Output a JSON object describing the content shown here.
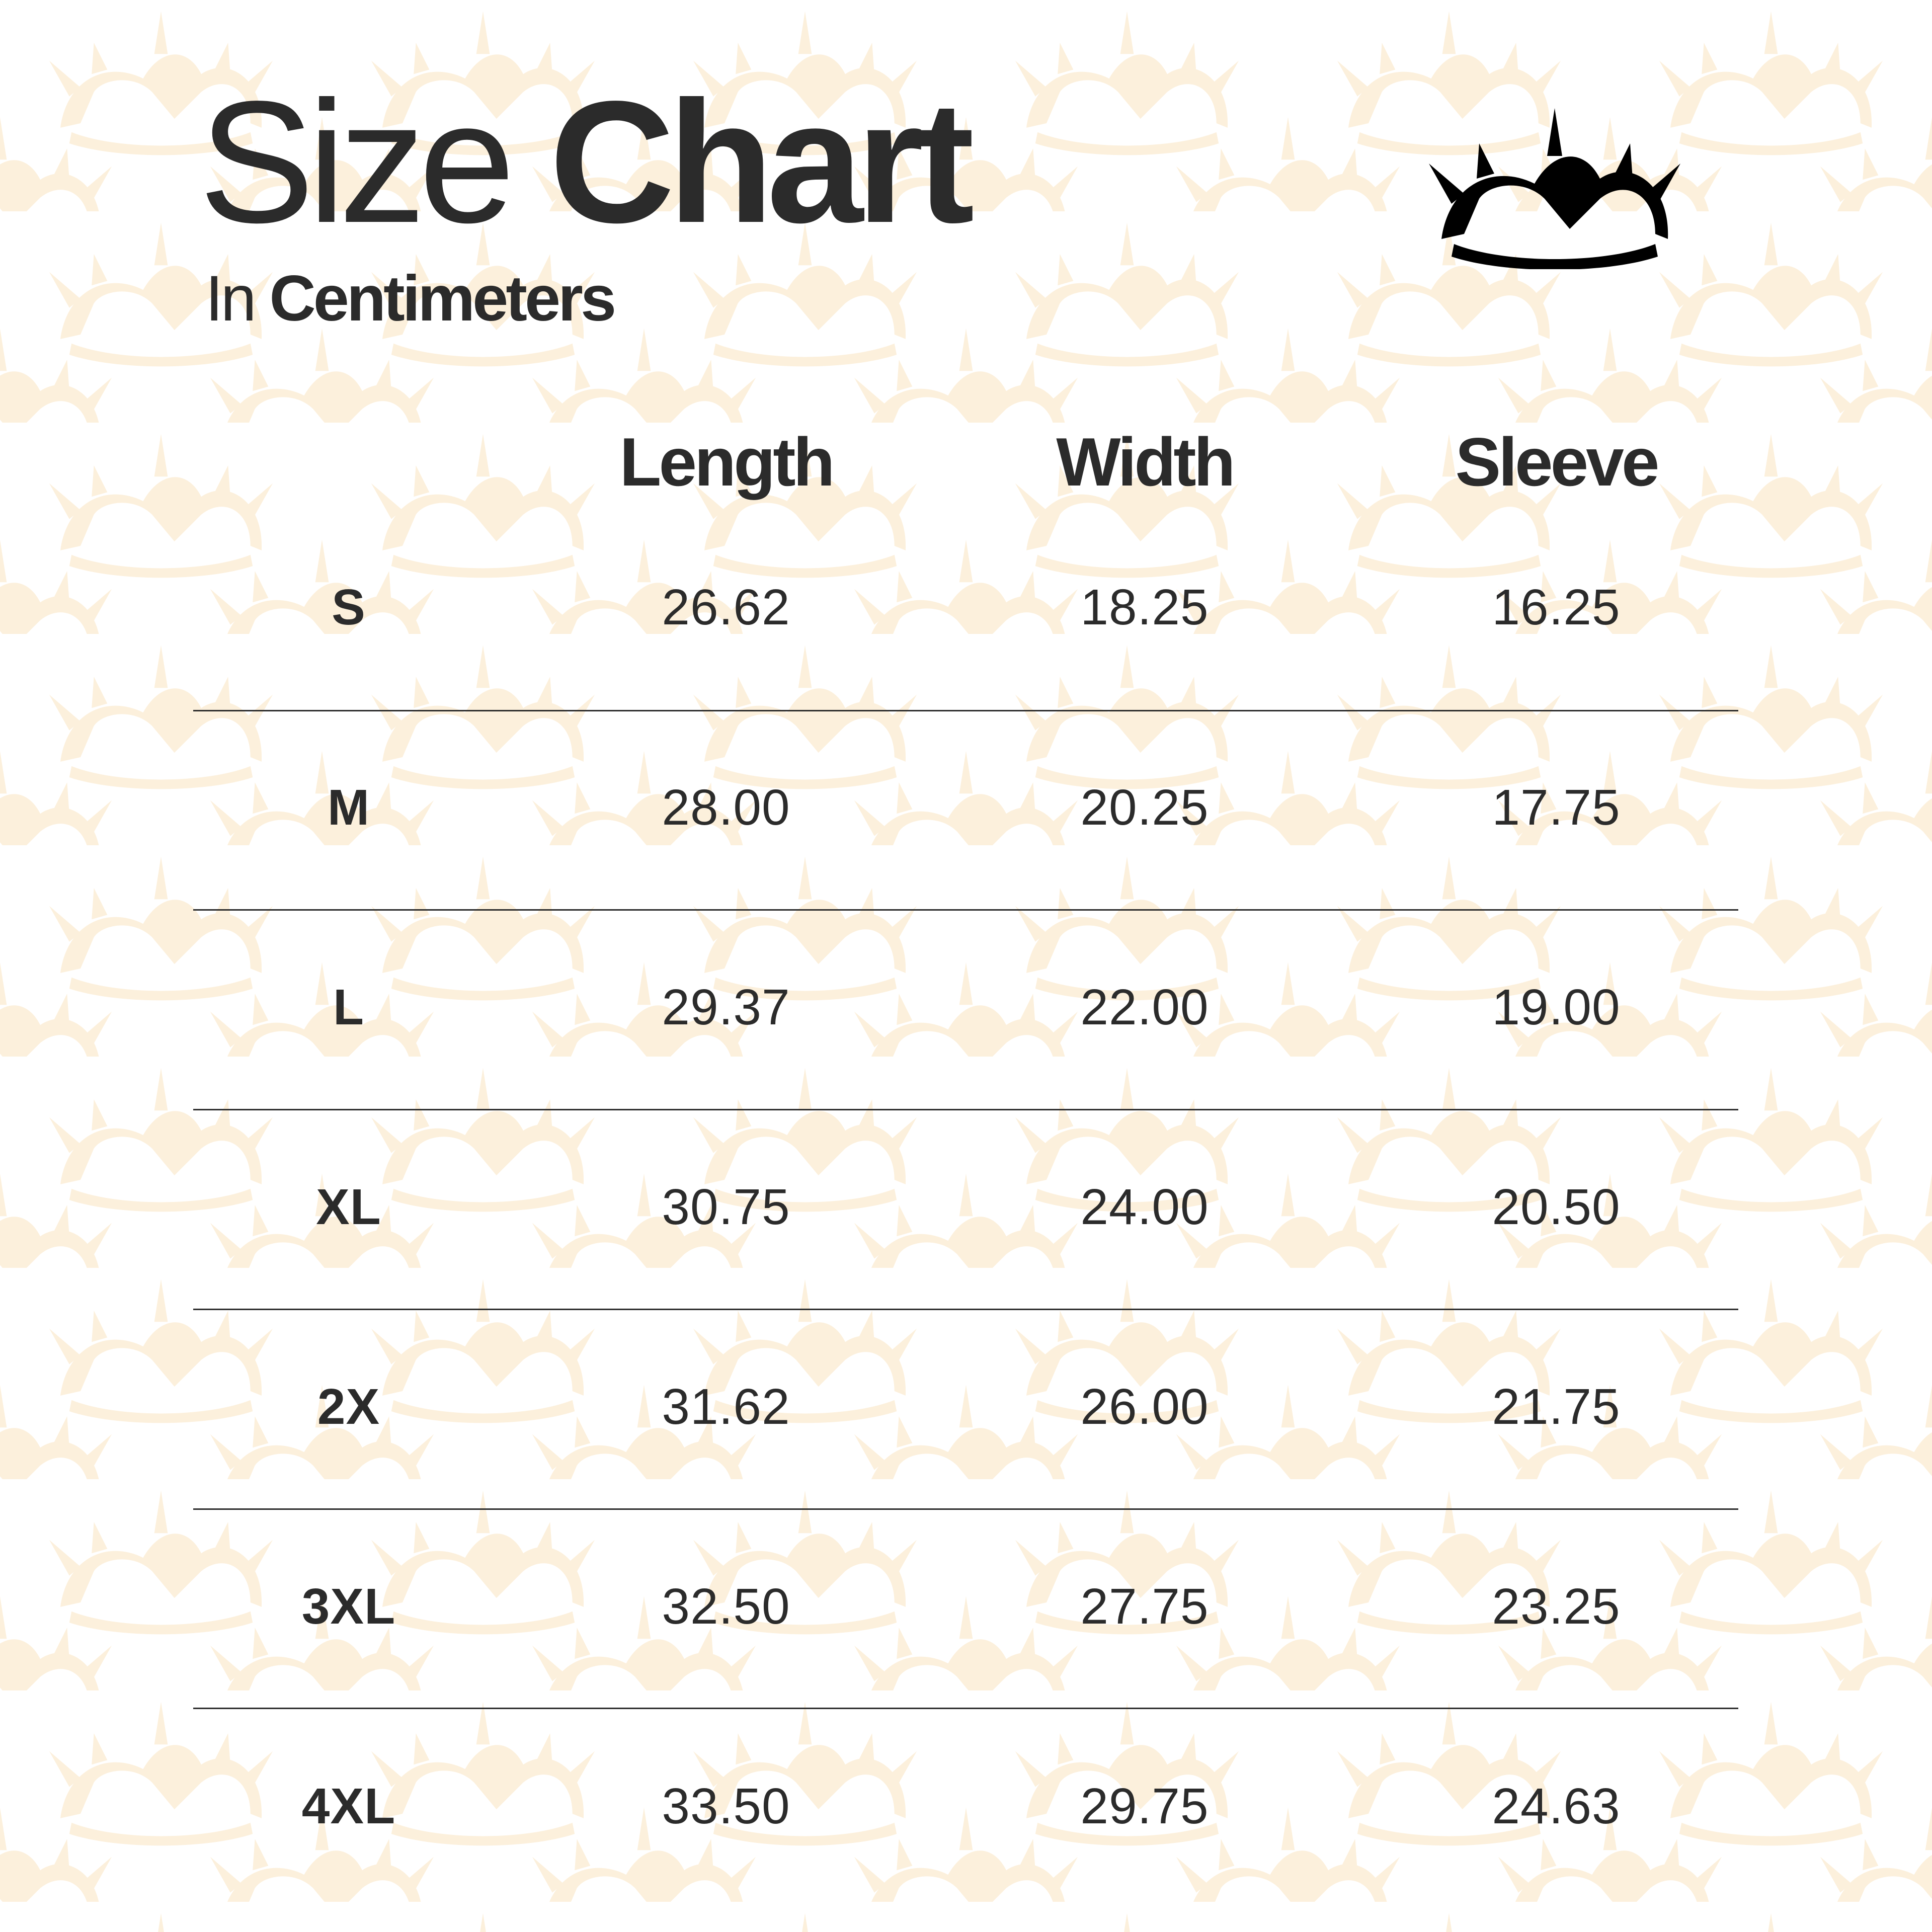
{
  "header": {
    "title_light": "Size",
    "title_bold": "Chart",
    "subtitle_light": "In",
    "subtitle_bold": "Centimeters",
    "logo_icon": "crown-of-thorns-icon"
  },
  "colors": {
    "background": "#ffffff",
    "pattern": "#fcf0dc",
    "text": "#2b2b2b"
  },
  "table": {
    "columns": [
      "",
      "Length",
      "Width",
      "Sleeve"
    ],
    "rows": [
      {
        "size": "S",
        "length": "26.62",
        "width": "18.25",
        "sleeve": "16.25"
      },
      {
        "size": "M",
        "length": "28.00",
        "width": "20.25",
        "sleeve": "17.75"
      },
      {
        "size": "L",
        "length": "29.37",
        "width": "22.00",
        "sleeve": "19.00"
      },
      {
        "size": "XL",
        "length": "30.75",
        "width": "24.00",
        "sleeve": "20.50"
      },
      {
        "size": "2X",
        "length": "31.62",
        "width": "26.00",
        "sleeve": "21.75"
      },
      {
        "size": "3XL",
        "length": "32.50",
        "width": "27.75",
        "sleeve": "23.25"
      },
      {
        "size": "4XL",
        "length": "33.50",
        "width": "29.75",
        "sleeve": "24.63"
      }
    ]
  }
}
